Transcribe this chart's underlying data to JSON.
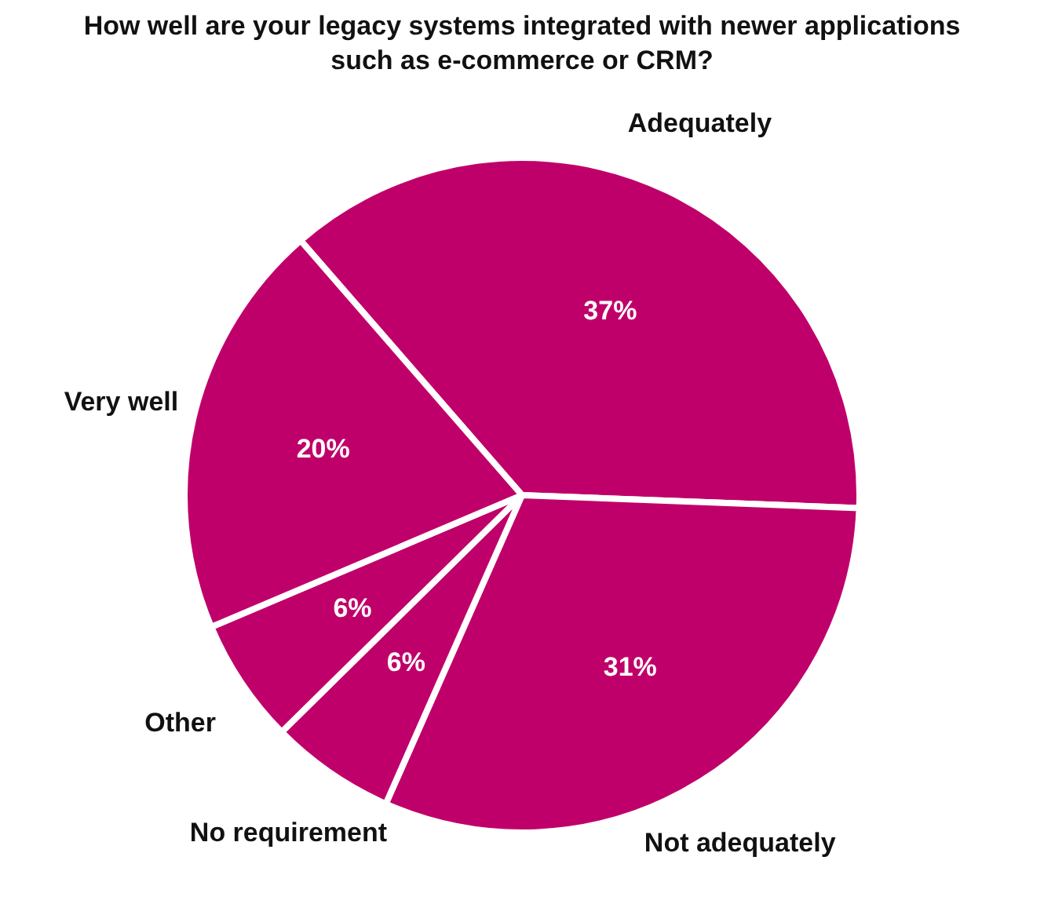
{
  "chart_data": {
    "type": "pie",
    "title": "How well are your legacy systems integrated with newer applications\nsuch as e-commerce or CRM?",
    "categories": [
      "Adequately",
      "Not adequately",
      "No requirement",
      "Other",
      "Very well"
    ],
    "values": [
      37,
      31,
      6,
      6,
      20
    ],
    "value_labels": [
      "37%",
      "31%",
      "6%",
      "6%",
      "20%"
    ],
    "colors": [
      "#c0006a",
      "#c0006a",
      "#c0006a",
      "#c0006a",
      "#c0006a"
    ]
  }
}
